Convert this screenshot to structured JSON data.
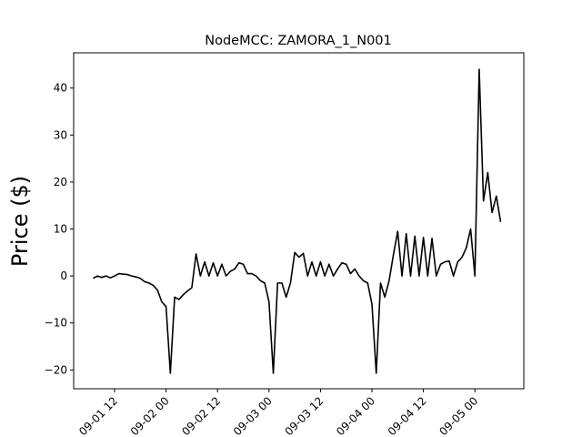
{
  "chart_data": {
    "type": "line",
    "title": "NodeMCC: ZAMORA_1_N001",
    "y_label": "Price ($)",
    "x": [
      7,
      8,
      9,
      10,
      11,
      12,
      13,
      14,
      15,
      16,
      17,
      18,
      19,
      20,
      21,
      22,
      23,
      24,
      25,
      26,
      27,
      28,
      29,
      30,
      31,
      32,
      33,
      34,
      35,
      36,
      37,
      38,
      39,
      40,
      41,
      42,
      43,
      44,
      45,
      46,
      47,
      48,
      49,
      50,
      51,
      52,
      53,
      54,
      55,
      56,
      57,
      58,
      59,
      60,
      61,
      62,
      63,
      64,
      65,
      66,
      67,
      68,
      69,
      70,
      71,
      72,
      73,
      74,
      75,
      76,
      77,
      78,
      79,
      80,
      81,
      82,
      83,
      84,
      85,
      86,
      87,
      88,
      89,
      90,
      91,
      92,
      93,
      94,
      95,
      96,
      97,
      98,
      99,
      100,
      101,
      102
    ],
    "series": [
      {
        "color": "#000000",
        "values": [
          -0.5,
          0,
          -0.3,
          0,
          -0.4,
          0,
          0.5,
          0.4,
          0.3,
          0,
          -0.2,
          -0.5,
          -1.2,
          -1.5,
          -2,
          -3,
          -5.5,
          -6.5,
          -20.7,
          -4.5,
          -5,
          -4,
          -3.2,
          -2.5,
          4.7,
          0,
          3,
          0,
          2.8,
          0,
          2.5,
          0,
          1,
          1.5,
          2.8,
          2.5,
          0.5,
          0.5,
          0,
          -1,
          -1.5,
          -5.5,
          -20.7,
          -1.5,
          -1.5,
          -4.5,
          -1.5,
          5,
          4,
          4.8,
          0,
          3,
          0,
          3,
          0,
          2.5,
          0,
          1.5,
          2.8,
          2.5,
          0.5,
          1.5,
          0,
          -1,
          -1.5,
          -6,
          -20.7,
          -1.5,
          -4.5,
          -1,
          4.5,
          9.5,
          0,
          9,
          0,
          8.5,
          0,
          8.2,
          0,
          8,
          0,
          2.5,
          3,
          3.2,
          0,
          3,
          4,
          6,
          10,
          0,
          44,
          16,
          22,
          13.5,
          17,
          11.5
        ]
      }
    ],
    "xlim": [
      2.46,
      107.4
    ],
    "xticks": [
      {
        "value": 12,
        "label": "09-01 12"
      },
      {
        "value": 24,
        "label": "09-02 00"
      },
      {
        "value": 36,
        "label": "09-02 12"
      },
      {
        "value": 48,
        "label": "09-03 00"
      },
      {
        "value": 60,
        "label": "09-03 12"
      },
      {
        "value": 72,
        "label": "09-04 00"
      },
      {
        "value": 84,
        "label": "09-04 12"
      },
      {
        "value": 96,
        "label": "09-05 00"
      }
    ],
    "ylim": [
      -24,
      47.5
    ],
    "yticks": [
      {
        "value": -20,
        "label": "−20"
      },
      {
        "value": -10,
        "label": "−10"
      },
      0,
      10,
      20,
      30,
      40
    ]
  }
}
